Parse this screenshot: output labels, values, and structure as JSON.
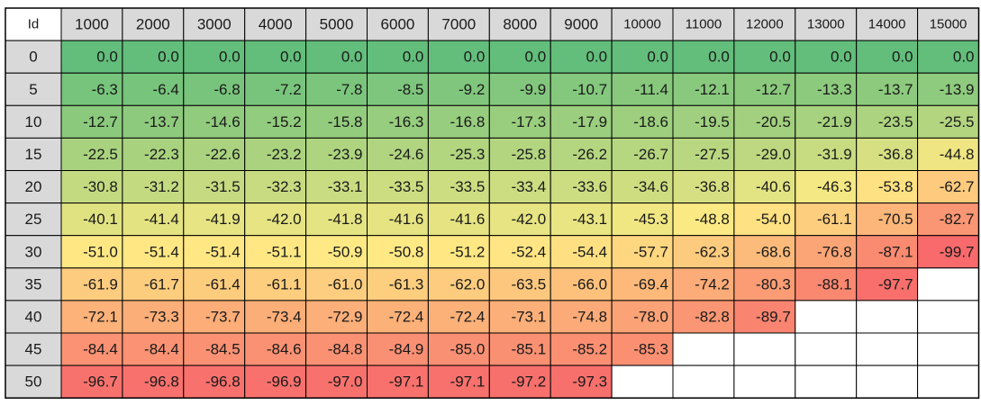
{
  "chart_data": {
    "type": "heatmap",
    "corner_label": "Id",
    "columns": [
      "1000",
      "2000",
      "3000",
      "4000",
      "5000",
      "6000",
      "7000",
      "8000",
      "9000",
      "10000",
      "11000",
      "12000",
      "13000",
      "14000",
      "15000"
    ],
    "rows": [
      "0",
      "5",
      "10",
      "15",
      "20",
      "25",
      "30",
      "35",
      "40",
      "45",
      "50"
    ],
    "values": [
      [
        0.0,
        0.0,
        0.0,
        0.0,
        0.0,
        0.0,
        0.0,
        0.0,
        0.0,
        0.0,
        0.0,
        0.0,
        0.0,
        0.0,
        0.0
      ],
      [
        -6.3,
        -6.4,
        -6.8,
        -7.2,
        -7.8,
        -8.5,
        -9.2,
        -9.9,
        -10.7,
        -11.4,
        -12.1,
        -12.7,
        -13.3,
        -13.7,
        -13.9
      ],
      [
        -12.7,
        -13.7,
        -14.6,
        -15.2,
        -15.8,
        -16.3,
        -16.8,
        -17.3,
        -17.9,
        -18.6,
        -19.5,
        -20.5,
        -21.9,
        -23.5,
        -25.5
      ],
      [
        -22.5,
        -22.3,
        -22.6,
        -23.2,
        -23.9,
        -24.6,
        -25.3,
        -25.8,
        -26.2,
        -26.7,
        -27.5,
        -29.0,
        -31.9,
        -36.8,
        -44.8
      ],
      [
        -30.8,
        -31.2,
        -31.5,
        -32.3,
        -33.1,
        -33.5,
        -33.5,
        -33.4,
        -33.6,
        -34.6,
        -36.8,
        -40.6,
        -46.3,
        -53.8,
        -62.7
      ],
      [
        -40.1,
        -41.4,
        -41.9,
        -42.0,
        -41.8,
        -41.6,
        -41.6,
        -42.0,
        -43.1,
        -45.3,
        -48.8,
        -54.0,
        -61.1,
        -70.5,
        -82.7
      ],
      [
        -51.0,
        -51.4,
        -51.4,
        -51.1,
        -50.9,
        -50.8,
        -51.2,
        -52.4,
        -54.4,
        -57.7,
        -62.3,
        -68.6,
        -76.8,
        -87.1,
        -99.7
      ],
      [
        -61.9,
        -61.7,
        -61.4,
        -61.1,
        -61.0,
        -61.3,
        -62.0,
        -63.5,
        -66.0,
        -69.4,
        -74.2,
        -80.3,
        -88.1,
        -97.7,
        null
      ],
      [
        -72.1,
        -73.3,
        -73.7,
        -73.4,
        -72.9,
        -72.4,
        -72.4,
        -73.1,
        -74.8,
        -78.0,
        -82.8,
        -89.7,
        null,
        null,
        null
      ],
      [
        -84.4,
        -84.4,
        -84.5,
        -84.6,
        -84.8,
        -84.9,
        -85.0,
        -85.1,
        -85.2,
        -85.3,
        null,
        null,
        null,
        null,
        null
      ],
      [
        -96.7,
        -96.8,
        -96.8,
        -96.9,
        -97.0,
        -97.1,
        -97.1,
        -97.2,
        -97.3,
        null,
        null,
        null,
        null,
        null,
        null
      ]
    ],
    "color_scale": {
      "min": -100,
      "max": 0,
      "low_color": "#f8696b",
      "mid_color": "#ffeb84",
      "high_color": "#63be7b"
    },
    "header_fill": "#d9d9d9",
    "empty_fill": "#ffffff"
  }
}
